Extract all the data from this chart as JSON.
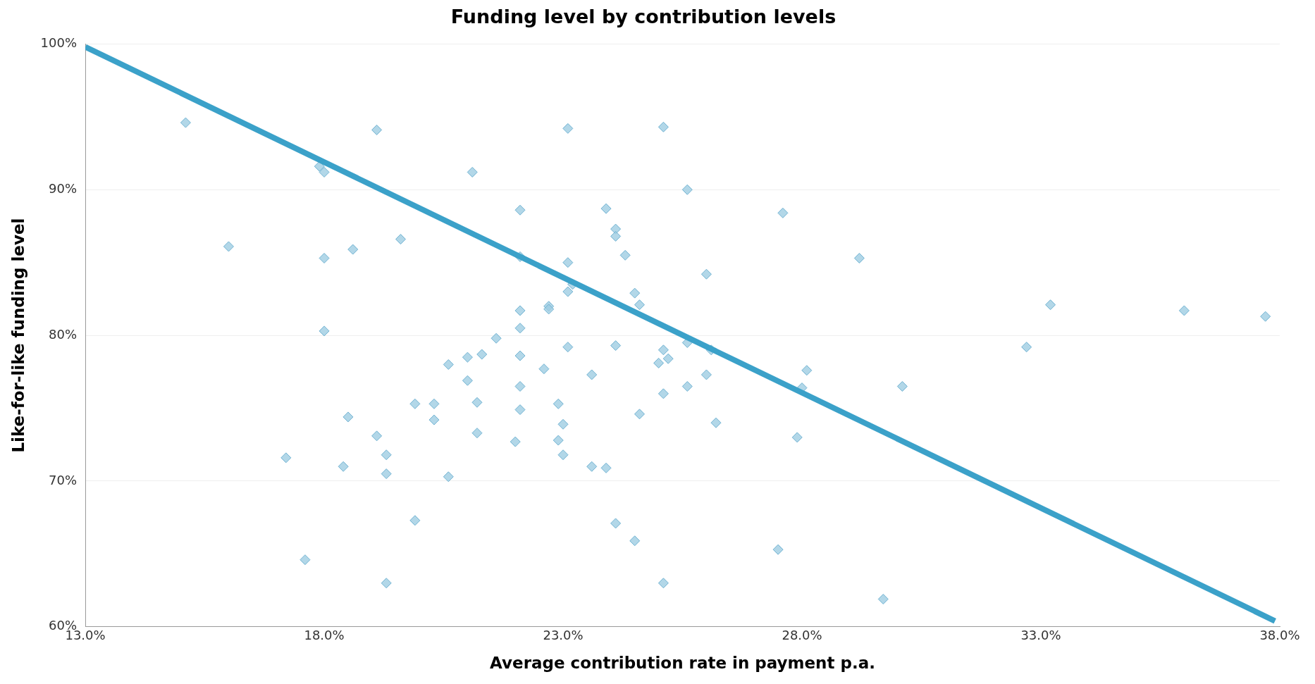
{
  "chart_data": {
    "type": "scatter",
    "title": "Funding level by contribution levels",
    "xlabel": "Average contribution rate in payment p.a.",
    "ylabel": "Like-for-like funding level",
    "xlim": [
      13,
      38
    ],
    "ylim": [
      60,
      100
    ],
    "xticks": [
      {
        "value": 13,
        "label": "13.0%"
      },
      {
        "value": 18,
        "label": "18.0%"
      },
      {
        "value": 23,
        "label": "23.0%"
      },
      {
        "value": 28,
        "label": "28.0%"
      },
      {
        "value": 33,
        "label": "33.0%"
      },
      {
        "value": 38,
        "label": "38.0%"
      }
    ],
    "yticks": [
      {
        "value": 60,
        "label": "60%"
      },
      {
        "value": 70,
        "label": "70%"
      },
      {
        "value": 80,
        "label": "80%"
      },
      {
        "value": 90,
        "label": "90%"
      },
      {
        "value": 100,
        "label": "100%"
      }
    ],
    "grid": "y",
    "series": [
      {
        "type": "scatter",
        "marker": "diamond",
        "color": "#9fcde2",
        "x": [
          15.1,
          16.0,
          17.2,
          17.6,
          17.9,
          18.0,
          18.0,
          18.0,
          18.4,
          18.5,
          18.6,
          19.1,
          19.1,
          19.3,
          19.3,
          19.3,
          19.6,
          19.9,
          19.9,
          20.3,
          20.3,
          20.6,
          20.6,
          21.0,
          21.0,
          21.1,
          21.2,
          21.2,
          21.3,
          21.6,
          22.0,
          22.1,
          22.1,
          22.1,
          22.1,
          22.1,
          22.1,
          22.1,
          22.6,
          22.7,
          22.7,
          22.9,
          22.9,
          23.0,
          23.0,
          23.1,
          23.1,
          23.1,
          23.1,
          23.2,
          23.6,
          23.6,
          23.9,
          23.9,
          24.1,
          24.1,
          24.1,
          24.1,
          24.3,
          24.5,
          24.5,
          24.6,
          24.6,
          25.0,
          25.1,
          25.1,
          25.1,
          25.1,
          25.2,
          25.6,
          25.6,
          25.6,
          26.0,
          26.0,
          26.1,
          26.2,
          27.5,
          27.6,
          27.9,
          28.0,
          28.1,
          29.2,
          29.7,
          30.1,
          32.7,
          33.2,
          36.0,
          37.7
        ],
        "values": [
          94.6,
          86.1,
          71.6,
          64.6,
          91.6,
          91.2,
          85.3,
          80.3,
          71.0,
          74.4,
          85.9,
          94.1,
          73.1,
          71.8,
          70.5,
          63.0,
          86.6,
          75.3,
          67.3,
          75.3,
          74.2,
          78.0,
          70.3,
          78.5,
          76.9,
          91.2,
          75.4,
          73.3,
          78.7,
          79.8,
          72.7,
          88.6,
          85.4,
          81.7,
          80.5,
          78.6,
          76.5,
          74.9,
          77.7,
          82.0,
          81.8,
          75.3,
          72.8,
          73.9,
          71.8,
          94.2,
          85.0,
          83.0,
          79.2,
          83.5,
          77.3,
          71.0,
          88.7,
          70.9,
          87.3,
          86.8,
          79.3,
          67.1,
          85.5,
          82.9,
          65.9,
          82.1,
          74.6,
          78.1,
          94.3,
          79.0,
          76.0,
          63.0,
          78.4,
          90.0,
          79.5,
          76.5,
          84.2,
          77.3,
          79.0,
          74.0,
          65.3,
          88.4,
          73.0,
          76.4,
          77.6,
          85.3,
          61.9,
          76.5,
          79.2,
          82.1,
          81.7,
          81.3
        ]
      },
      {
        "type": "line",
        "marker": "none",
        "color": "#3ba1c9",
        "x": [
          13,
          37.9
        ],
        "values": [
          99.8,
          60.4
        ]
      }
    ]
  }
}
